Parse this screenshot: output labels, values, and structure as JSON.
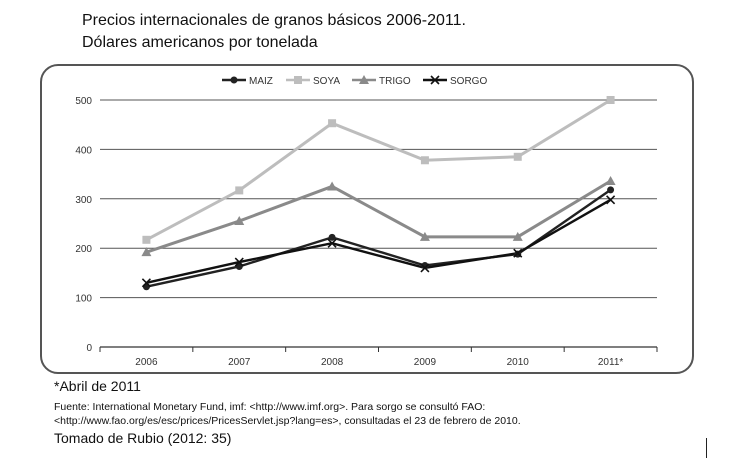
{
  "title_line1": "Precios internacionales de granos básicos 2006-2011.",
  "title_line2": "Dólares americanos por tonelada",
  "note": "*Abril de 2011",
  "source_line1": "Fuente: International Monetary Fund, imf: <http://www.imf.org>. Para sorgo se consultó FAO:",
  "source_line2": "<http://www.fao.org/es/esc/prices/PricesServlet.jsp?lang=es>, consultadas el 23 de febrero de 2010.",
  "citation": "Tomado de Rubio (2012: 35)",
  "chart_data": {
    "type": "line",
    "categories": [
      "2006",
      "2007",
      "2008",
      "2009",
      "2010",
      "2011*"
    ],
    "ylim": [
      0,
      500
    ],
    "yticks": [
      "0",
      "100",
      "200",
      "300",
      "400",
      "500"
    ],
    "grid": true,
    "legend_position": "top-center",
    "series": [
      {
        "name": "MAIZ",
        "values": [
          122,
          163,
          222,
          165,
          188,
          318
        ],
        "color": "#222222",
        "marker": "circle"
      },
      {
        "name": "SOYA",
        "values": [
          217,
          317,
          453,
          378,
          385,
          500
        ],
        "color": "#bdbdbd",
        "marker": "square"
      },
      {
        "name": "TRIGO",
        "values": [
          192,
          255,
          325,
          223,
          223,
          336
        ],
        "color": "#8a8a8a",
        "marker": "triangle"
      },
      {
        "name": "SORGO",
        "values": [
          130,
          172,
          210,
          160,
          190,
          298
        ],
        "color": "#111111",
        "marker": "x"
      }
    ]
  }
}
